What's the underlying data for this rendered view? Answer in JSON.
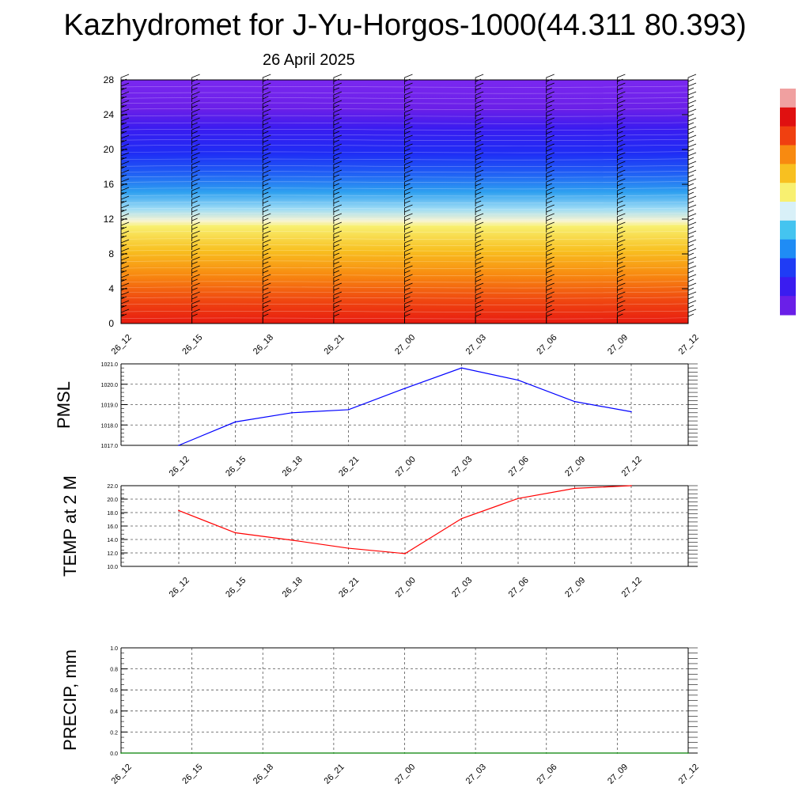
{
  "title": "Kazhydromet for J-Yu-Horgos-1000(44.311 80.393)",
  "date": "26 April 2025",
  "time_labels": [
    "26_12",
    "26_15",
    "26_18",
    "26_21",
    "27_00",
    "27_03",
    "27_06",
    "27_09",
    "27_12"
  ],
  "colors": {
    "pmsl_line": "#0000ff",
    "temp_line": "#ff0000",
    "precip_line": "#008000",
    "grid": "#555555",
    "colorbar": [
      "#6a1fe8",
      "#3a1cf0",
      "#1f3cf5",
      "#1f8cf5",
      "#44c4f0",
      "#d8f0f8",
      "#f8f070",
      "#f8c020",
      "#f88a10",
      "#f04010",
      "#e01010",
      "#f0a0a0"
    ]
  },
  "chart_data": [
    {
      "type": "heatmap",
      "title": "",
      "xlabel": "",
      "ylabel": "",
      "x": [
        "26_12",
        "26_15",
        "26_18",
        "26_21",
        "27_00",
        "27_03",
        "27_06",
        "27_09",
        "27_12"
      ],
      "ylim": [
        0,
        28
      ],
      "yticks": [
        "0",
        "4",
        "8",
        "12",
        "16",
        "20",
        "24",
        "28"
      ],
      "colorbar": true,
      "wind_barbs": true
    },
    {
      "type": "line",
      "ylabel": "PMSL",
      "ylim": [
        1017.0,
        1021.0
      ],
      "yticks": [
        "1017.0",
        "1018.0",
        "1019.0",
        "1020.0",
        "1021.0"
      ],
      "x": [
        "26_12",
        "26_15",
        "26_18",
        "26_21",
        "27_00",
        "27_03",
        "27_06",
        "27_09",
        "27_12"
      ],
      "series": [
        {
          "values": [
            1017.0,
            1018.15,
            1018.6,
            1018.75,
            1019.8,
            1020.8,
            1020.2,
            1019.15,
            1018.65
          ]
        }
      ],
      "grid": true
    },
    {
      "type": "line",
      "ylabel": "TEMP at 2 M",
      "ylim": [
        10.0,
        22.0
      ],
      "yticks": [
        "10.0",
        "12.0",
        "14.0",
        "16.0",
        "18.0",
        "20.0",
        "22.0"
      ],
      "x": [
        "26_12",
        "26_15",
        "26_18",
        "26_21",
        "27_00",
        "27_03",
        "27_06",
        "27_09",
        "27_12"
      ],
      "series": [
        {
          "values": [
            18.3,
            15.0,
            13.9,
            12.7,
            11.9,
            17.1,
            20.1,
            21.6,
            22.0
          ]
        }
      ],
      "grid": true
    },
    {
      "type": "line",
      "ylabel": "PRECIP, mm",
      "ylim": [
        0.0,
        1.0
      ],
      "yticks": [
        "0.0",
        "0.2",
        "0.4",
        "0.6",
        "0.8",
        "1.0"
      ],
      "x": [
        "26_12",
        "26_15",
        "26_18",
        "26_21",
        "27_00",
        "27_03",
        "27_06",
        "27_09",
        "27_12"
      ],
      "series": [
        {
          "values": [
            0,
            0,
            0,
            0,
            0,
            0,
            0,
            0,
            0
          ]
        }
      ],
      "grid": true
    }
  ]
}
